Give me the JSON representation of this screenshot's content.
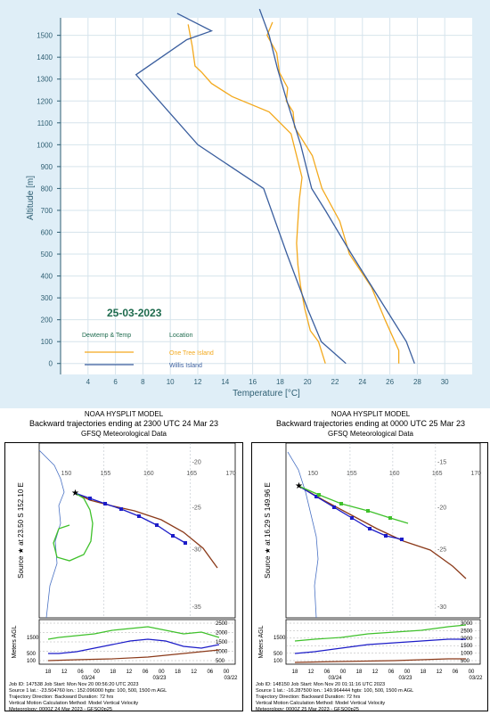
{
  "sounding": {
    "date": "25-03-2023",
    "xlabel": "Temperature [°C]",
    "ylabel": "Altitude [m]",
    "legend_heading_left": "Dewtemp & Temp",
    "legend_heading_right": "Location",
    "colors": {
      "background": "#dfeef7",
      "grid": "#ffffff",
      "axis_text": "#2f5f73",
      "date": "#1e6b4e",
      "one_tree": "#f3a91d",
      "willis": "#3a5e9e"
    }
  },
  "chart_data": {
    "type": "line",
    "xlabel": "Temperature [°C]",
    "ylabel": "Altitude [m]",
    "xlim": [
      2,
      32
    ],
    "ylim": [
      -50,
      1580
    ],
    "xticks": [
      4,
      6,
      8,
      10,
      12,
      14,
      16,
      18,
      20,
      22,
      24,
      26,
      28,
      30
    ],
    "yticks": [
      0,
      100,
      200,
      300,
      400,
      500,
      600,
      700,
      800,
      900,
      1000,
      1100,
      1200,
      1300,
      1400,
      1500
    ],
    "grid": true,
    "legend_position": "bottom-left",
    "series": [
      {
        "name": "One Tree Island",
        "kind": "temperature",
        "color": "#f3a91d",
        "points": [
          [
            26.8,
            0
          ],
          [
            26.5,
            60
          ],
          [
            25.8,
            200
          ],
          [
            24.5,
            350
          ],
          [
            23.2,
            500
          ],
          [
            22.2,
            650
          ],
          [
            21.2,
            800
          ],
          [
            20.2,
            950
          ],
          [
            19.2,
            1080
          ],
          [
            18.8,
            1150
          ],
          [
            18.6,
            1200
          ],
          [
            18.4,
            1260
          ],
          [
            18.1,
            1330
          ],
          [
            17.6,
            1420
          ],
          [
            17.2,
            1500
          ],
          [
            17.3,
            1560
          ]
        ]
      },
      {
        "name": "One Tree Island",
        "kind": "dewpoint",
        "color": "#f3a91d",
        "points": [
          [
            21.3,
            0
          ],
          [
            20.8,
            100
          ],
          [
            20.2,
            150
          ],
          [
            19.8,
            250
          ],
          [
            19.5,
            350
          ],
          [
            19.3,
            450
          ],
          [
            19.2,
            550
          ],
          [
            19.3,
            650
          ],
          [
            19.4,
            750
          ],
          [
            19.6,
            850
          ],
          [
            19.2,
            950
          ],
          [
            18.8,
            1050
          ],
          [
            17.2,
            1150
          ],
          [
            14.5,
            1220
          ],
          [
            13.0,
            1280
          ],
          [
            12.3,
            1330
          ],
          [
            11.8,
            1360
          ],
          [
            11.6,
            1450
          ],
          [
            11.3,
            1550
          ]
        ]
      },
      {
        "name": "Willis Island",
        "kind": "temperature",
        "color": "#3a5e9e",
        "points": [
          [
            27.8,
            0
          ],
          [
            27.2,
            100
          ],
          [
            25.2,
            300
          ],
          [
            23.2,
            500
          ],
          [
            21.3,
            700
          ],
          [
            20.3,
            800
          ],
          [
            19.5,
            1000
          ],
          [
            18.5,
            1200
          ],
          [
            17.8,
            1350
          ],
          [
            17.2,
            1500
          ],
          [
            16.5,
            1620
          ]
        ]
      },
      {
        "name": "Willis Island",
        "kind": "dewpoint",
        "color": "#3a5e9e",
        "points": [
          [
            22.8,
            0
          ],
          [
            21.0,
            100
          ],
          [
            20.0,
            250
          ],
          [
            18.5,
            500
          ],
          [
            16.8,
            800
          ],
          [
            12.0,
            1000
          ],
          [
            7.5,
            1320
          ],
          [
            11.2,
            1480
          ],
          [
            13.0,
            1520
          ],
          [
            10.5,
            1600
          ]
        ]
      }
    ]
  },
  "hysplit": [
    {
      "header": [
        "NOAA HYSPLIT MODEL",
        "Backward trajectories ending at 2300 UTC 24 Mar 23",
        "GFSQ Meteorological Data"
      ],
      "source_label": "Source ★ at  23.50 S  152.10 E",
      "lon_labels": [
        "150",
        "155",
        "160",
        "165",
        "170"
      ],
      "lat_labels": [
        "-20",
        "-25",
        "-30",
        "-35"
      ],
      "height_ticks": [
        "2500",
        "2000",
        "1500",
        "1000",
        "500"
      ],
      "height_left": [
        "1500",
        "500",
        "100"
      ],
      "meters_label": "Meters AGL",
      "time_ticks": [
        "18",
        "12",
        "06",
        "00",
        "18",
        "12",
        "06",
        "00",
        "18",
        "12",
        "06",
        "00"
      ],
      "dates": [
        "03/24",
        "03/23",
        "03/22"
      ],
      "info": [
        "Job ID: 147538          Job Start: Mon Nov 20 00:56:20 UTC 2023",
        "Source 1 lat.: -23.504760  lon.: 152.096000  hgts: 100, 500, 1500 m AGL",
        "Trajectory Direction: Backward      Duration: 72 hrs",
        "Vertical Motion Calculation Method:      Model Vertical Velocity",
        "Meteorology: 0000Z 24 Mar 2023 - GFSQ0p25"
      ]
    },
    {
      "header": [
        "NOAA HYSPLIT MODEL",
        "Backward trajectories ending at 0000 UTC 25 Mar 23",
        "GFSQ Meteorological Data"
      ],
      "source_label": "Source ★ at  16.29 S  149.96 E",
      "lon_labels": [
        "150",
        "155",
        "160",
        "165",
        "170"
      ],
      "lat_labels": [
        "-15",
        "-20",
        "-25",
        "-30"
      ],
      "height_ticks": [
        "3000",
        "2500",
        "2000",
        "1500",
        "1000",
        "500"
      ],
      "height_left": [
        "1500",
        "500",
        "100"
      ],
      "meters_label": "Meters AGL",
      "time_ticks": [
        "18",
        "12",
        "06",
        "00",
        "18",
        "12",
        "06",
        "00",
        "18",
        "12",
        "06",
        "00"
      ],
      "dates": [
        "03/24",
        "03/23",
        "03/22"
      ],
      "info": [
        "Job ID: 148150          Job Start: Mon Nov 20 01:11:16 UTC 2023",
        "Source 1 lat.: -16.287500  lon.: 149.964444  hgts: 100, 500, 1500 m AGL",
        "Trajectory Direction: Backward      Duration: 72 hrs",
        "Vertical Motion Calculation Method:      Model Vertical Velocity",
        "Meteorology: 0000Z 25 Mar 2023 - GFSQ0p25"
      ]
    }
  ]
}
